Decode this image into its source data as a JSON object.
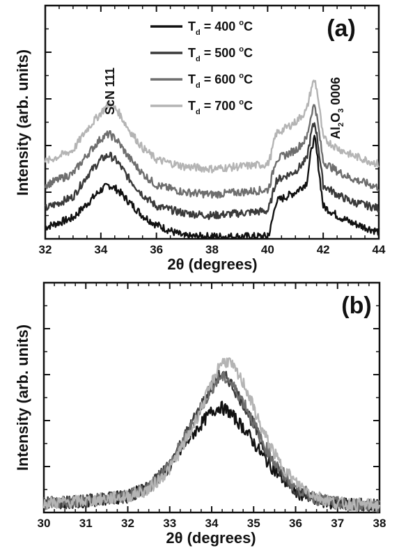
{
  "chart_data": [
    {
      "panel": "(a)",
      "type": "line",
      "xlabel_text": "2θ (degrees)",
      "ylabel": "Intensity (arb. units)",
      "xlim": [
        32,
        44
      ],
      "xticks": [
        "32",
        "34",
        "36",
        "38",
        "40",
        "42",
        "44"
      ],
      "ylim": [
        0,
        10
      ],
      "y_tick_labels": "none",
      "legend_position": "top-center",
      "series": [
        {
          "name": "400",
          "color": "#111111",
          "x": [
            32,
            33,
            33.5,
            34,
            34.3,
            34.6,
            35,
            35.5,
            36,
            37,
            38,
            39,
            40,
            40.1,
            40.3,
            41,
            41.4,
            41.6,
            41.7,
            41.8,
            42,
            42.5,
            43,
            44
          ],
          "y": [
            0.5,
            0.9,
            1.5,
            2.1,
            2.3,
            2.1,
            1.6,
            1.0,
            0.6,
            0.1,
            0.1,
            0.1,
            0.1,
            0.4,
            1.6,
            2.0,
            2.4,
            4.0,
            4.3,
            3.4,
            1.4,
            1.0,
            0.7,
            0.3
          ]
        },
        {
          "name": "500",
          "color": "#3a3a3a",
          "x": [
            32,
            33,
            33.5,
            34,
            34.3,
            34.6,
            35,
            35.5,
            36,
            37,
            38,
            39,
            40,
            40.1,
            40.3,
            41,
            41.4,
            41.6,
            41.7,
            41.8,
            42,
            42.5,
            43,
            44
          ],
          "y": [
            1.3,
            1.8,
            2.7,
            3.4,
            3.6,
            3.3,
            2.6,
            1.9,
            1.4,
            1.1,
            1.0,
            1.1,
            1.2,
            1.5,
            2.5,
            2.9,
            3.4,
            4.7,
            5.0,
            4.2,
            2.3,
            1.9,
            1.6,
            1.3
          ]
        },
        {
          "name": "600",
          "color": "#6e6e6e",
          "x": [
            32,
            33,
            33.5,
            34,
            34.3,
            34.6,
            35,
            35.5,
            36,
            37,
            38,
            39,
            40,
            40.1,
            40.3,
            41,
            41.4,
            41.6,
            41.7,
            41.8,
            42,
            42.5,
            43,
            44
          ],
          "y": [
            2.3,
            2.8,
            3.6,
            4.3,
            4.5,
            4.2,
            3.5,
            2.8,
            2.3,
            2.0,
            1.9,
            2.0,
            2.1,
            2.4,
            3.4,
            3.8,
            4.3,
            5.5,
            5.8,
            5.0,
            3.3,
            2.9,
            2.6,
            2.2
          ]
        },
        {
          "name": "700",
          "color": "#b4b4b4",
          "x": [
            32,
            33,
            33.5,
            34,
            34.3,
            34.6,
            35,
            35.5,
            36,
            37,
            38,
            39,
            40,
            40.1,
            40.3,
            41,
            41.4,
            41.6,
            41.7,
            41.8,
            42,
            42.5,
            43,
            44
          ],
          "y": [
            3.3,
            3.8,
            4.7,
            5.4,
            5.8,
            5.5,
            4.7,
            3.9,
            3.4,
            3.1,
            3.0,
            3.1,
            3.2,
            3.5,
            4.5,
            5.0,
            5.5,
            6.6,
            6.8,
            6.2,
            4.3,
            3.9,
            3.6,
            3.2
          ]
        }
      ],
      "annotations": [
        {
          "text": "ScN 111",
          "x": 34.3,
          "rotation": -90
        },
        {
          "text": "Al2O3 0006",
          "x": 42.2,
          "rotation": -90
        }
      ]
    },
    {
      "panel": "(b)",
      "type": "line",
      "xlabel_text": "2θ (degrees)",
      "ylabel": "Intensity (arb. units)",
      "xlim": [
        30,
        38
      ],
      "xticks": [
        "30",
        "31",
        "32",
        "33",
        "34",
        "35",
        "36",
        "37",
        "38"
      ],
      "ylim": [
        0,
        10
      ],
      "y_tick_labels": "none",
      "series": [
        {
          "name": "400",
          "color": "#111111",
          "x": [
            30,
            31,
            32,
            32.5,
            33,
            33.5,
            34,
            34.2,
            34.4,
            34.8,
            35.2,
            35.6,
            36,
            36.5,
            37,
            38
          ],
          "y": [
            0.4,
            0.5,
            0.7,
            1.1,
            2.0,
            3.3,
            4.4,
            4.6,
            4.4,
            3.6,
            2.5,
            1.6,
            0.9,
            0.5,
            0.4,
            0.3
          ]
        },
        {
          "name": "500",
          "color": "#3a3a3a",
          "x": [
            30,
            31,
            32,
            32.5,
            33,
            33.5,
            34,
            34.2,
            34.4,
            34.8,
            35.2,
            35.6,
            36,
            36.5,
            37,
            38
          ],
          "y": [
            0.4,
            0.5,
            0.7,
            1.1,
            2.1,
            3.8,
            5.5,
            6.0,
            5.8,
            4.6,
            3.0,
            1.8,
            1.0,
            0.6,
            0.4,
            0.3
          ]
        },
        {
          "name": "600",
          "color": "#6e6e6e",
          "x": [
            30,
            31,
            32,
            32.5,
            33,
            33.5,
            34,
            34.2,
            34.4,
            34.8,
            35.2,
            35.6,
            36,
            36.5,
            37,
            38
          ],
          "y": [
            0.4,
            0.5,
            0.7,
            1.1,
            2.1,
            3.7,
            5.4,
            5.9,
            5.8,
            4.7,
            3.1,
            1.9,
            1.1,
            0.6,
            0.4,
            0.3
          ]
        },
        {
          "name": "700",
          "color": "#b4b4b4",
          "x": [
            30,
            31,
            32,
            32.5,
            33,
            33.5,
            34,
            34.2,
            34.4,
            34.8,
            35.2,
            35.6,
            36,
            36.5,
            37,
            38
          ],
          "y": [
            0.4,
            0.5,
            0.7,
            1.0,
            1.9,
            3.5,
            5.6,
            6.5,
            6.6,
            5.5,
            3.6,
            2.2,
            1.3,
            0.7,
            0.4,
            0.3
          ]
        }
      ]
    }
  ],
  "labels": {
    "panel_a": "(a)",
    "panel_b": "(b)",
    "ylabel_a": "Intensity (arb. units)",
    "ylabel_b": "Intensity (arb. units)",
    "xlabel_theta": "θ (degrees)",
    "xlabel_two": "2",
    "legend_T": "T",
    "legend_sub": "d",
    "legend_deg": "o",
    "legend_C": "C",
    "legend_eq": " = ",
    "annot_scn": "ScN 111",
    "annot_al": "Al",
    "annot_sub2": "2",
    "annot_o": "O",
    "annot_sub3": "3",
    "annot_0006": " 0006"
  }
}
